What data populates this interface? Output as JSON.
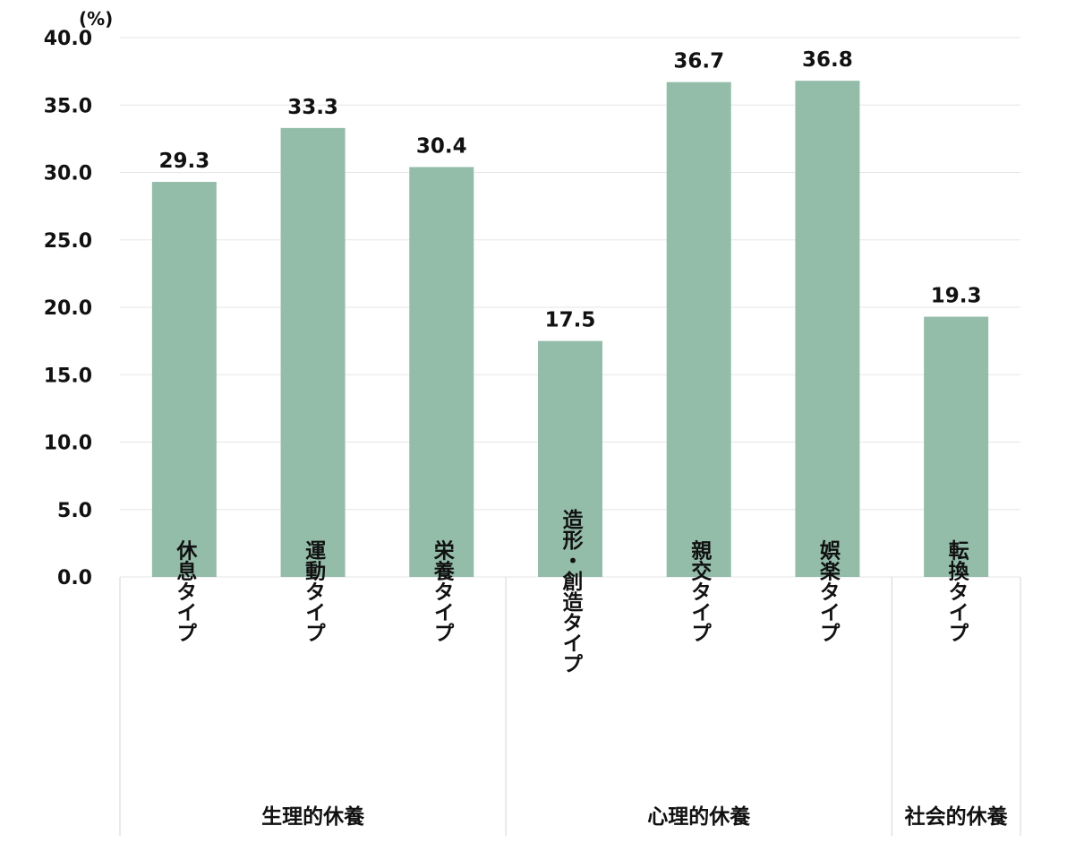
{
  "chart_data": {
    "type": "bar",
    "title": "",
    "xlabel": "",
    "ylabel": "",
    "y_unit": "(%)",
    "ylim": [
      0,
      40
    ],
    "yticks": [
      "0.0",
      "5.0",
      "10.0",
      "15.0",
      "20.0",
      "25.0",
      "30.0",
      "35.0",
      "40.0"
    ],
    "grid": true,
    "bar_color": "#93bca9",
    "categories": [
      "休息タイプ",
      "運動タイプ",
      "栄養タイプ",
      "造形・創造タイプ",
      "親交タイプ",
      "娯楽タイプ",
      "転換タイプ"
    ],
    "values": [
      29.3,
      33.3,
      30.4,
      17.5,
      36.7,
      36.8,
      19.3
    ],
    "value_labels": [
      "29.3",
      "33.3",
      "30.4",
      "17.5",
      "36.7",
      "36.8",
      "19.3"
    ],
    "groups": [
      {
        "name": "生理的休養",
        "categories": [
          0,
          1,
          2
        ]
      },
      {
        "name": "心理的休養",
        "categories": [
          3,
          4,
          5
        ]
      },
      {
        "name": "社会的休養",
        "categories": [
          6
        ]
      }
    ]
  }
}
